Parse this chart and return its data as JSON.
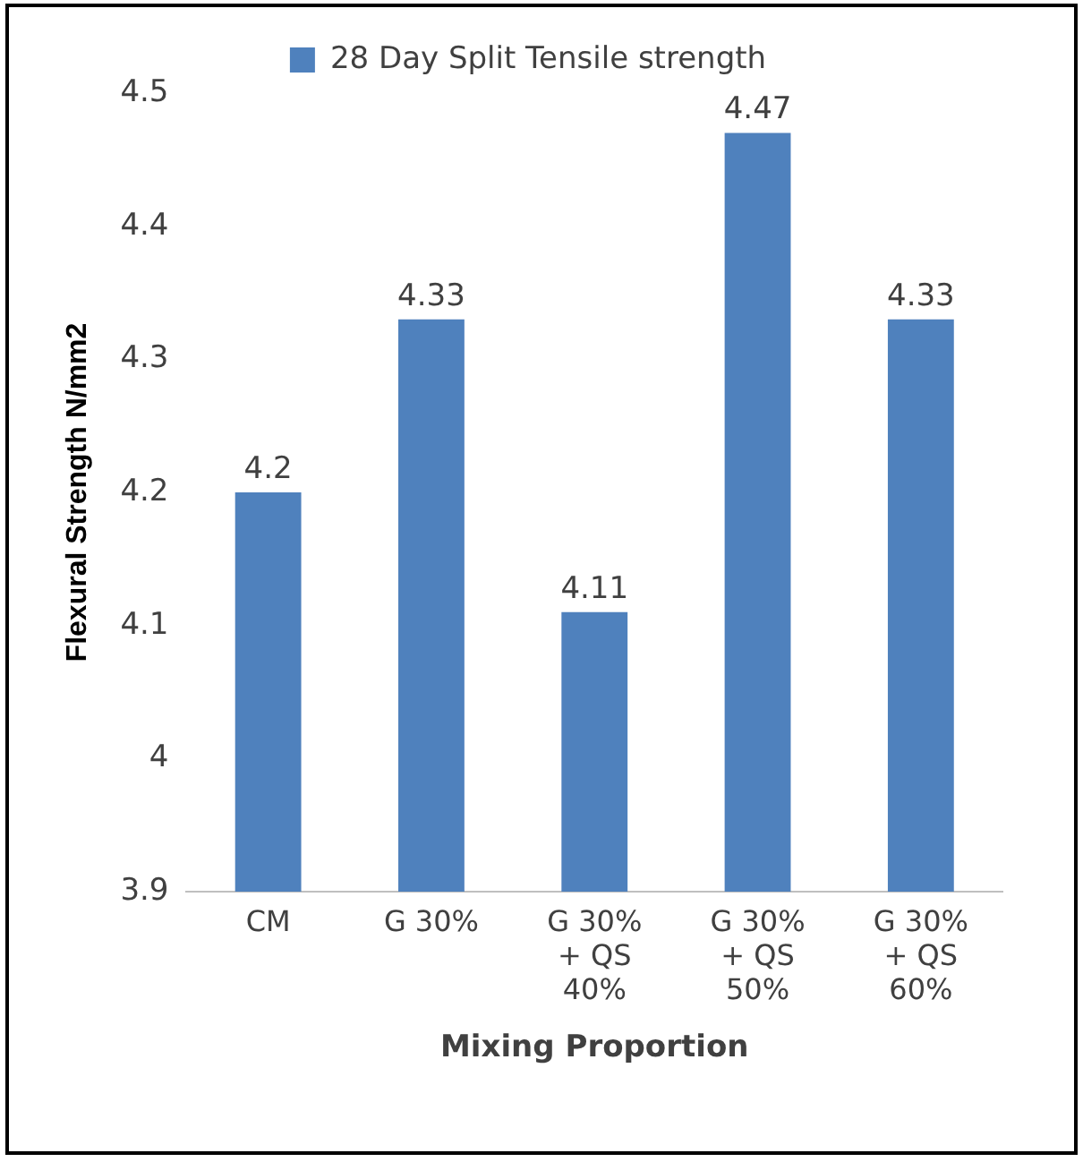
{
  "chart_data": {
    "type": "bar",
    "xlabel": "Mixing Proportion",
    "ylabel": "Flexural Strength N/mm2",
    "categories": [
      "CM",
      "G 30%",
      "G 30% + QS 40%",
      "G 30% + QS 50%",
      "G 30% + QS 60%"
    ],
    "series": [
      {
        "name": "28 Day Split Tensile strength",
        "color": "#4f81bd",
        "values": [
          4.2,
          4.33,
          4.11,
          4.47,
          4.33
        ]
      }
    ],
    "ylim": [
      3.9,
      4.5
    ],
    "yticks": [
      3.9,
      4,
      4.1,
      4.2,
      4.3,
      4.4,
      4.5
    ],
    "grid": false,
    "legend": "top",
    "data_labels": true
  }
}
